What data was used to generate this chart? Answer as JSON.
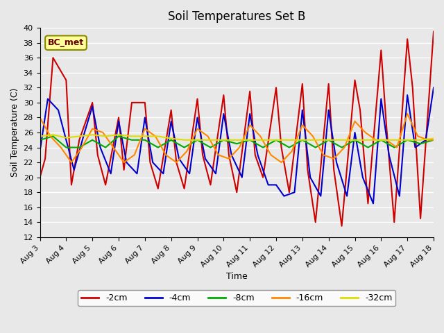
{
  "title": "Soil Temperatures Set B",
  "xlabel": "Time",
  "ylabel": "Soil Temperature (C)",
  "ylim": [
    12,
    40
  ],
  "xlim": [
    0,
    15
  ],
  "x_tick_labels": [
    "Aug 3",
    "Aug 4",
    "Aug 5",
    "Aug 6",
    "Aug 7",
    "Aug 8",
    "Aug 9",
    "Aug 10",
    "Aug 11",
    "Aug 12",
    "Aug 13",
    "Aug 14",
    "Aug 15",
    "Aug 16",
    "Aug 17",
    "Aug 18"
  ],
  "annotation": "BC_met",
  "background_color": "#e8e8e8",
  "grid_color": "#ffffff",
  "series": {
    "-2cm": {
      "color": "#cc0000",
      "data_x": [
        0,
        0.2,
        0.5,
        1.0,
        1.2,
        1.5,
        2.0,
        2.2,
        2.5,
        3.0,
        3.2,
        3.5,
        4.0,
        4.2,
        4.5,
        5.0,
        5.2,
        5.5,
        6.0,
        6.2,
        6.5,
        7.0,
        7.2,
        7.5,
        8.0,
        8.2,
        8.5,
        9.0,
        9.2,
        9.5,
        10.0,
        10.2,
        10.5,
        11.0,
        11.2,
        11.5,
        12.0,
        12.2,
        12.5,
        13.0,
        13.2,
        13.5,
        14.0,
        14.2,
        14.5,
        15.0
      ],
      "data_y": [
        20,
        22.5,
        36,
        33,
        19,
        25,
        30,
        23,
        19,
        28,
        21,
        30,
        30,
        22,
        18.5,
        29,
        22,
        18.5,
        30.5,
        23,
        19,
        31,
        23,
        18,
        31.5,
        23,
        20,
        32,
        24,
        18,
        32.5,
        21,
        14,
        32.5,
        21,
        13.5,
        33,
        29,
        16.5,
        37,
        27,
        14,
        38.5,
        32,
        14.5,
        39.5
      ]
    },
    "-4cm": {
      "color": "#0000cc",
      "data_x": [
        0,
        0.3,
        0.7,
        1.0,
        1.3,
        1.7,
        2.0,
        2.3,
        2.7,
        3.0,
        3.3,
        3.7,
        4.0,
        4.3,
        4.7,
        5.0,
        5.3,
        5.7,
        6.0,
        6.3,
        6.7,
        7.0,
        7.3,
        7.7,
        8.0,
        8.3,
        8.7,
        9.0,
        9.3,
        9.7,
        10.0,
        10.3,
        10.7,
        11.0,
        11.3,
        11.7,
        12.0,
        12.3,
        12.7,
        13.0,
        13.3,
        13.7,
        14.0,
        14.3,
        14.7,
        15.0
      ],
      "data_y": [
        23.5,
        30.5,
        29,
        25,
        21,
        26,
        29.5,
        24,
        20.5,
        27.5,
        22,
        20.5,
        28,
        22,
        20.5,
        27.5,
        22.5,
        20.5,
        28,
        22.5,
        20.5,
        28.5,
        23,
        20,
        28.5,
        23,
        19,
        19,
        17.5,
        18,
        29,
        20,
        17.5,
        29,
        22,
        17.5,
        26,
        20,
        16.5,
        30.5,
        23,
        17.5,
        31,
        24,
        25,
        32
      ]
    },
    "-8cm": {
      "color": "#00aa00",
      "data_x": [
        0,
        0.5,
        1.0,
        1.5,
        2.0,
        2.5,
        3.0,
        3.5,
        4.0,
        4.5,
        5.0,
        5.5,
        6.0,
        6.5,
        7.0,
        7.5,
        8.0,
        8.5,
        9.0,
        9.5,
        10.0,
        10.5,
        11.0,
        11.5,
        12.0,
        12.5,
        13.0,
        13.5,
        14.0,
        14.5,
        15.0
      ],
      "data_y": [
        25,
        25.5,
        24,
        24,
        25,
        24,
        25.5,
        25,
        25,
        24,
        25,
        24,
        25,
        24,
        25,
        24.5,
        25,
        24,
        25,
        24,
        25,
        24,
        25,
        24,
        25,
        24,
        25,
        24,
        25,
        24.5,
        25
      ]
    },
    "-16cm": {
      "color": "#ff8800",
      "data_x": [
        0,
        0.4,
        0.8,
        1.2,
        1.6,
        2.0,
        2.4,
        2.8,
        3.2,
        3.6,
        4.0,
        4.4,
        4.8,
        5.2,
        5.6,
        6.0,
        6.4,
        6.8,
        7.2,
        7.6,
        8.0,
        8.4,
        8.8,
        9.2,
        9.6,
        10.0,
        10.4,
        10.8,
        11.2,
        11.6,
        12.0,
        12.4,
        12.8,
        13.2,
        13.6,
        14.0,
        14.4,
        14.8,
        15.0
      ],
      "data_y": [
        28,
        25.5,
        24,
        22,
        24,
        26.5,
        26,
        24,
        22,
        23,
        26.5,
        25.5,
        23,
        22,
        23.5,
        26.5,
        25.5,
        23,
        22.5,
        24,
        27,
        25.5,
        23,
        22,
        23.5,
        27,
        25.5,
        23,
        22.5,
        24,
        27.5,
        26,
        25,
        25,
        24,
        28.5,
        25.5,
        25,
        25
      ]
    },
    "-32cm": {
      "color": "#dddd00",
      "data_x": [
        0,
        0.5,
        1.0,
        1.5,
        2.0,
        2.5,
        3.0,
        3.5,
        4.0,
        4.5,
        5.0,
        5.5,
        6.0,
        6.5,
        7.0,
        7.5,
        8.0,
        8.5,
        9.0,
        9.5,
        10.0,
        10.5,
        11.0,
        11.5,
        12.0,
        12.5,
        13.0,
        13.5,
        14.0,
        14.5,
        15.0
      ],
      "data_y": [
        25.5,
        25.7,
        25.3,
        25.5,
        25.7,
        25.5,
        25.7,
        25.5,
        25.5,
        25.5,
        25.2,
        25.0,
        25.0,
        25.0,
        25.0,
        25.0,
        25.0,
        25.0,
        25.0,
        25.0,
        25.0,
        25.0,
        25.0,
        25.0,
        25.0,
        25.0,
        25.0,
        25.0,
        25.0,
        25.0,
        25.2
      ]
    }
  }
}
